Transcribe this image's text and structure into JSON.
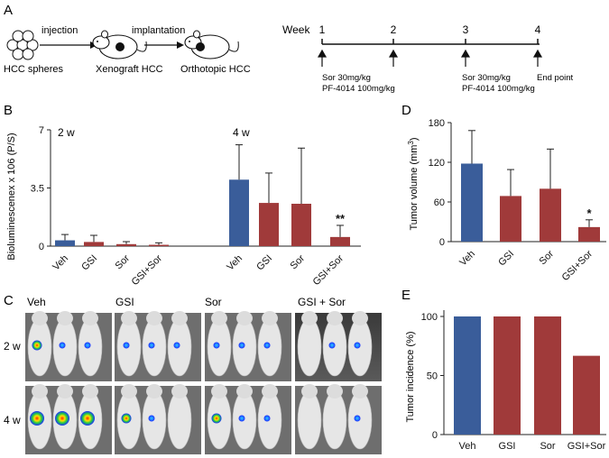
{
  "panels": {
    "a": {
      "letter": "A",
      "injection": "injection",
      "implantation": "implantation",
      "hcc_spheres": "HCC spheres",
      "xenograft": "Xenograft HCC",
      "orthotopic": "Orthotopic HCC",
      "week_label": "Week",
      "weeks": [
        "1",
        "2",
        "3",
        "4"
      ],
      "sor_dose": "Sor 30mg/kg",
      "pf_dose": "PF-4014  100mg/kg",
      "end_point": "End  point"
    },
    "b": {
      "letter": "B",
      "time_2w": "2 w",
      "time_4w": "4 w"
    },
    "c": {
      "letter": "C",
      "groups": [
        "Veh",
        "GSI",
        "Sor",
        "GSI + Sor"
      ],
      "rows": [
        "2 w",
        "4 w"
      ]
    },
    "d": {
      "letter": "D"
    },
    "e": {
      "letter": "E"
    }
  },
  "colors": {
    "blue": "#3a5d9a",
    "red": "#a03a3a",
    "axis": "#222222"
  },
  "chart_data": [
    {
      "id": "B",
      "type": "bar",
      "ylabel": "Bioluminescenex x 106 (P/S)",
      "ylim": [
        0,
        7
      ],
      "yticks": [
        "0",
        "3.5",
        "7"
      ],
      "ytick_values": [
        0,
        3.5,
        7
      ],
      "categories": [
        "Veh",
        "GSI",
        "Sor",
        "GSI+Sor",
        "Veh",
        "GSI",
        "Sor",
        "GSI+Sor"
      ],
      "groups": [
        "2 w",
        "4 w"
      ],
      "values": [
        0.35,
        0.25,
        0.12,
        0.08,
        4.0,
        2.6,
        2.55,
        0.55
      ],
      "errors": [
        0.35,
        0.4,
        0.15,
        0.12,
        2.1,
        1.8,
        3.35,
        0.7
      ],
      "significance": [
        "",
        "",
        "",
        "",
        "",
        "",
        "",
        "**"
      ]
    },
    {
      "id": "D",
      "type": "bar",
      "ylabel": "Tumor volume (mm",
      "ylabel_sup": "3",
      "ylabel_end": ")",
      "ylim": [
        0,
        180
      ],
      "yticks": [
        "0",
        "60",
        "120",
        "180"
      ],
      "ytick_values": [
        0,
        60,
        120,
        180
      ],
      "categories": [
        "Veh",
        "GSI",
        "Sor",
        "GSI+Sor"
      ],
      "values": [
        118,
        69,
        80,
        22
      ],
      "errors": [
        50,
        40,
        60,
        11
      ],
      "significance": [
        "",
        "",
        "",
        "*"
      ]
    },
    {
      "id": "E",
      "type": "bar",
      "ylabel": "Tumor incidence (%)",
      "ylim": [
        0,
        100
      ],
      "yticks": [
        "0",
        "50",
        "100"
      ],
      "ytick_values": [
        0,
        50,
        100
      ],
      "categories": [
        "Veh",
        "GSI",
        "Sor",
        "GSI+Sor"
      ],
      "values": [
        100,
        100,
        100,
        66.7
      ]
    }
  ]
}
